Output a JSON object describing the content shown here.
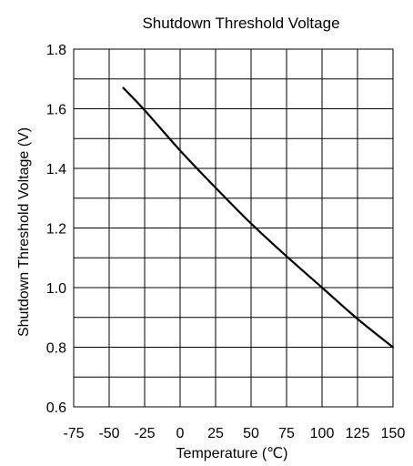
{
  "chart_data": {
    "type": "line",
    "title": "Shutdown Threshold Voltage",
    "xlabel": "Temperature (℃)",
    "ylabel": "Shutdown Threshold Voltage (V)",
    "xlim": [
      -75,
      150
    ],
    "ylim": [
      0.6,
      1.8
    ],
    "x_ticks": [
      -75,
      -50,
      -25,
      0,
      25,
      50,
      75,
      100,
      125,
      150
    ],
    "x_tick_labels": [
      "-75",
      "-50",
      "-25",
      "0",
      "25",
      "50",
      "75",
      "100",
      "125",
      "150"
    ],
    "y_ticks": [
      0.6,
      0.8,
      1.0,
      1.2,
      1.4,
      1.6,
      1.8
    ],
    "y_tick_labels": [
      "0.6",
      "0.8",
      "1.0",
      "1.2",
      "1.4",
      "1.6",
      "1.8"
    ],
    "grid": true,
    "grid_x_step": 25,
    "grid_y_step": 0.1,
    "legend": "none",
    "series": [
      {
        "color": "#000000",
        "x": [
          -40,
          -25,
          0,
          25,
          50,
          75,
          100,
          125,
          150
        ],
        "y": [
          1.67,
          1.595,
          1.46,
          1.335,
          1.215,
          1.105,
          1.0,
          0.895,
          0.8
        ]
      }
    ]
  }
}
